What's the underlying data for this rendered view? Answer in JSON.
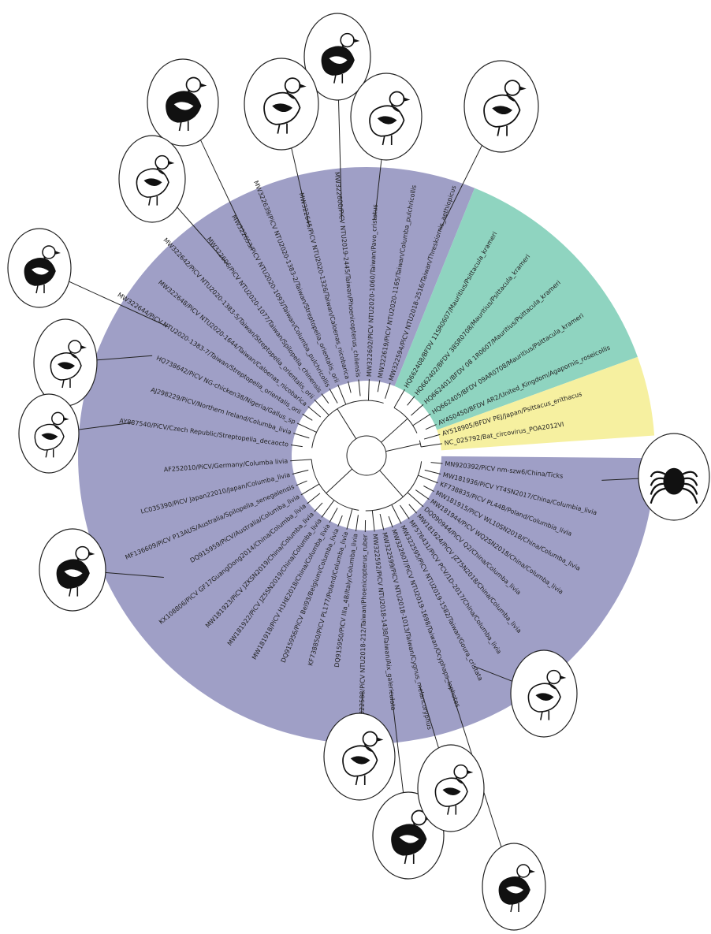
{
  "leaves": [
    "NC_025792/Bat_circovirus_POA2012VI",
    "AY518905/BFDV PEJ/Japan/Psittacus_erithacus",
    "AY450450/BFDV AR2/United_Kingdom/Agapornis_roseicollis",
    "HQ662405/BFDV 09AR0708/Mauritius/Psittacula_krameri",
    "HQ662401/BFDV 08 1R0607/Mauritius/Psittacula_krameri",
    "HQ662402/BFDV 38SR0708/Mauritius/Psittacula_krameri",
    "HQ662408/BFDV 11SR0607/Mauritius/Psittacula_krameri",
    "MW322594/PiCV NTU2018-2516/Taiwan/Threskiornis_aethiopicus",
    "MW322619/PiCV NTU2020-1165/Taiwan/Columba_pulchricollis",
    "MW322602/PiCV NTU2020-1060/Taiwan/Pavo_cristatus",
    "MW322600/PiCV NTU2019-2445/Taiwan/Phoenicopterus_chilensis",
    "MW322645/PiCV NTU2020-1326/Taiwan/Caloenas_nicobarica",
    "MW322639/PiCV NTU2020-1383-2/Taiwan/Streptopelia_orientalis_orii",
    "MW322653/PiCV NTU2020-1093/Taiwan/Columba_pulchricollis",
    "MW322606/PiCV NTU2020-1077/Taiwan/Spilopelia_chinensis",
    "MW322642/PiCV NTU2020-1383-5/Taiwan/Streptopelia_orientalis_orii",
    "MW322648/PiCV NTU2020-1644/Taiwan/Caloenas_nicobarica",
    "MW322644/PiCV NTU2020-1383-7/Taiwan/Streptopelia_orientalis_orii",
    "HQ738642/PiCV NG-chicken38/Nigeria/Gallus_sp",
    "AJ298229/PiCV/Northern Ireland/Columba_livia",
    "AY887540/PiCV/Czech Republic/Streptopelia_decaocto",
    "AF252010/PiCV/Germany/Columba livia",
    "LC035390/PiCV Japan22010/Japan/Columba_livia",
    "MF136609/PiCV P13AUS/Australia/Spilopelia_senegalensis",
    "DQ915959/PiCV/Australia/Columba_livia",
    "KX108806/PiCV GF17GuangDong2014/China/Columba_livia",
    "MW181923/PiCV JZKSN2019/China/Columba_livia",
    "MW181922/PiCV JZ5SN2019/China/Columba_livia",
    "MW181918/PiCV H1HE2018/China/Columba_livia",
    "DQ915956/PiCV Bel93/Belgium/Columba_livia",
    "KF738850/PiCV PL177/Poland/Columba_livia",
    "DQ915950/PiCV IIIa_4B/Italy/Columba_livia",
    "MW322588/PiCV NTU2018-212/Taiwan/Phoenicopterus_ruber",
    "MW322592/PiCV NTU2018-1438/Taiwan/Aix_galericulata",
    "MW322599/PiCV NTU2018-1013/Taiwan/Cygnus_melancoryphus",
    "MW322607/PiCV NTU2019-1698/Taiwan/Ocyphaps_lophotes",
    "MW322595/PiCV NTU2019-1582/Taiwan/Goura_cristata",
    "MF576431/PiCV PCV/1D-2017/China/Columba_livia",
    "MW181924/PiCV JZ75N2018/China/Columba_livia",
    "DQ090944/PiCV Q2/China/Columba_livia",
    "MW181944/PiCV WQ2SN2018/China/Columba_livia",
    "MW181915/PiCV WL10SN2018/China/Columba_livia",
    "KF738835/PiCV PL44B/Poland/Columbia_livia",
    "MW181936/PiCV YT4SN2017/China/Columbia_livia",
    "MN920392/PiCV nm-szw6/China/Ticks"
  ]
}
